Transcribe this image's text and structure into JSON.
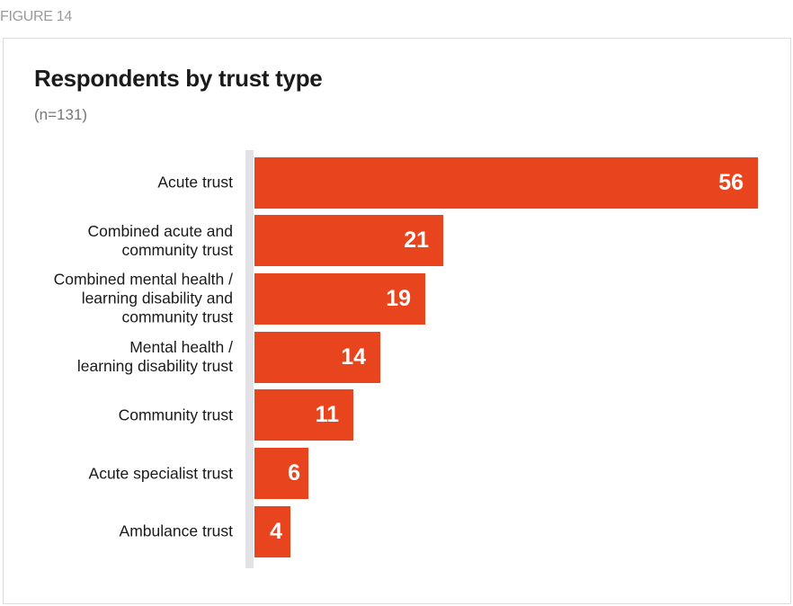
{
  "figure_label": "FIGURE 14",
  "chart_data": {
    "type": "bar",
    "orientation": "horizontal",
    "title": "Respondents by trust type",
    "subtitle": "(n=131)",
    "categories": [
      "Acute trust",
      "Combined acute and\ncommunity trust",
      "Combined mental health /\nlearning disability and\ncommunity trust",
      "Mental health /\nlearning disability trust",
      "Community trust",
      "Acute specialist trust",
      "Ambulance trust"
    ],
    "values": [
      56,
      21,
      19,
      14,
      11,
      6,
      4
    ],
    "value_labels": [
      "56",
      "21",
      "19",
      "14",
      "11",
      "6",
      "4"
    ],
    "bar_color": "#e8451f",
    "xlim": [
      0,
      56
    ],
    "grid": false,
    "legend": "none"
  }
}
